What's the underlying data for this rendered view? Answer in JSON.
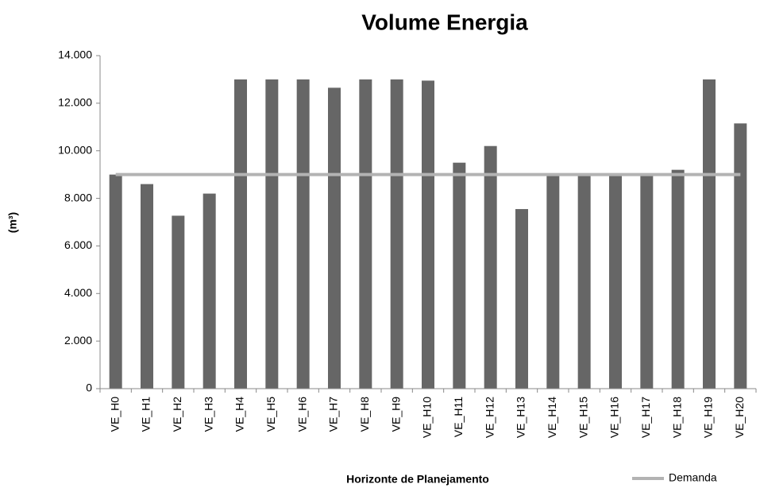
{
  "chart_data": {
    "type": "bar",
    "title": "Volume Energia",
    "x_label": "Horizonte de Planejamento",
    "y_label": "(m³)",
    "categories": [
      "VE_H0",
      "VE_H1",
      "VE_H2",
      "VE_H3",
      "VE_H4",
      "VE_H5",
      "VE_H6",
      "VE_H7",
      "VE_H8",
      "VE_H9",
      "VE_H10",
      "VE_H11",
      "VE_H12",
      "VE_H13",
      "VE_H14",
      "VE_H15",
      "VE_H16",
      "VE_H17",
      "VE_H18",
      "VE_H19",
      "VE_H20"
    ],
    "series": [
      {
        "type": "bar",
        "color": "#666666",
        "values": [
          9000,
          8600,
          7270,
          8200,
          13000,
          13000,
          13000,
          12650,
          13000,
          13000,
          12950,
          9500,
          10200,
          7550,
          9000,
          9000,
          9000,
          9000,
          9200,
          13000,
          11150
        ]
      },
      {
        "type": "line",
        "name": "Demanda",
        "color": "#b3b3b3",
        "values": [
          9000,
          9000,
          9000,
          9000,
          9000,
          9000,
          9000,
          9000,
          9000,
          9000,
          9000,
          9000,
          9000,
          9000,
          9000,
          9000,
          9000,
          9000,
          9000,
          9000,
          9000
        ]
      }
    ],
    "ylim": [
      0,
      14000
    ],
    "yticks": [
      0,
      {
        "value": 2000,
        "label": "2.000"
      },
      {
        "value": 4000,
        "label": "4.000"
      },
      {
        "value": 6000,
        "label": "6.000"
      },
      {
        "value": 8000,
        "label": "8.000"
      },
      {
        "value": 10000,
        "label": "10.000"
      },
      {
        "value": 12000,
        "label": "12.000"
      },
      {
        "value": 14000,
        "label": "14.000"
      }
    ],
    "grid": false,
    "legend": "bottom-right"
  }
}
